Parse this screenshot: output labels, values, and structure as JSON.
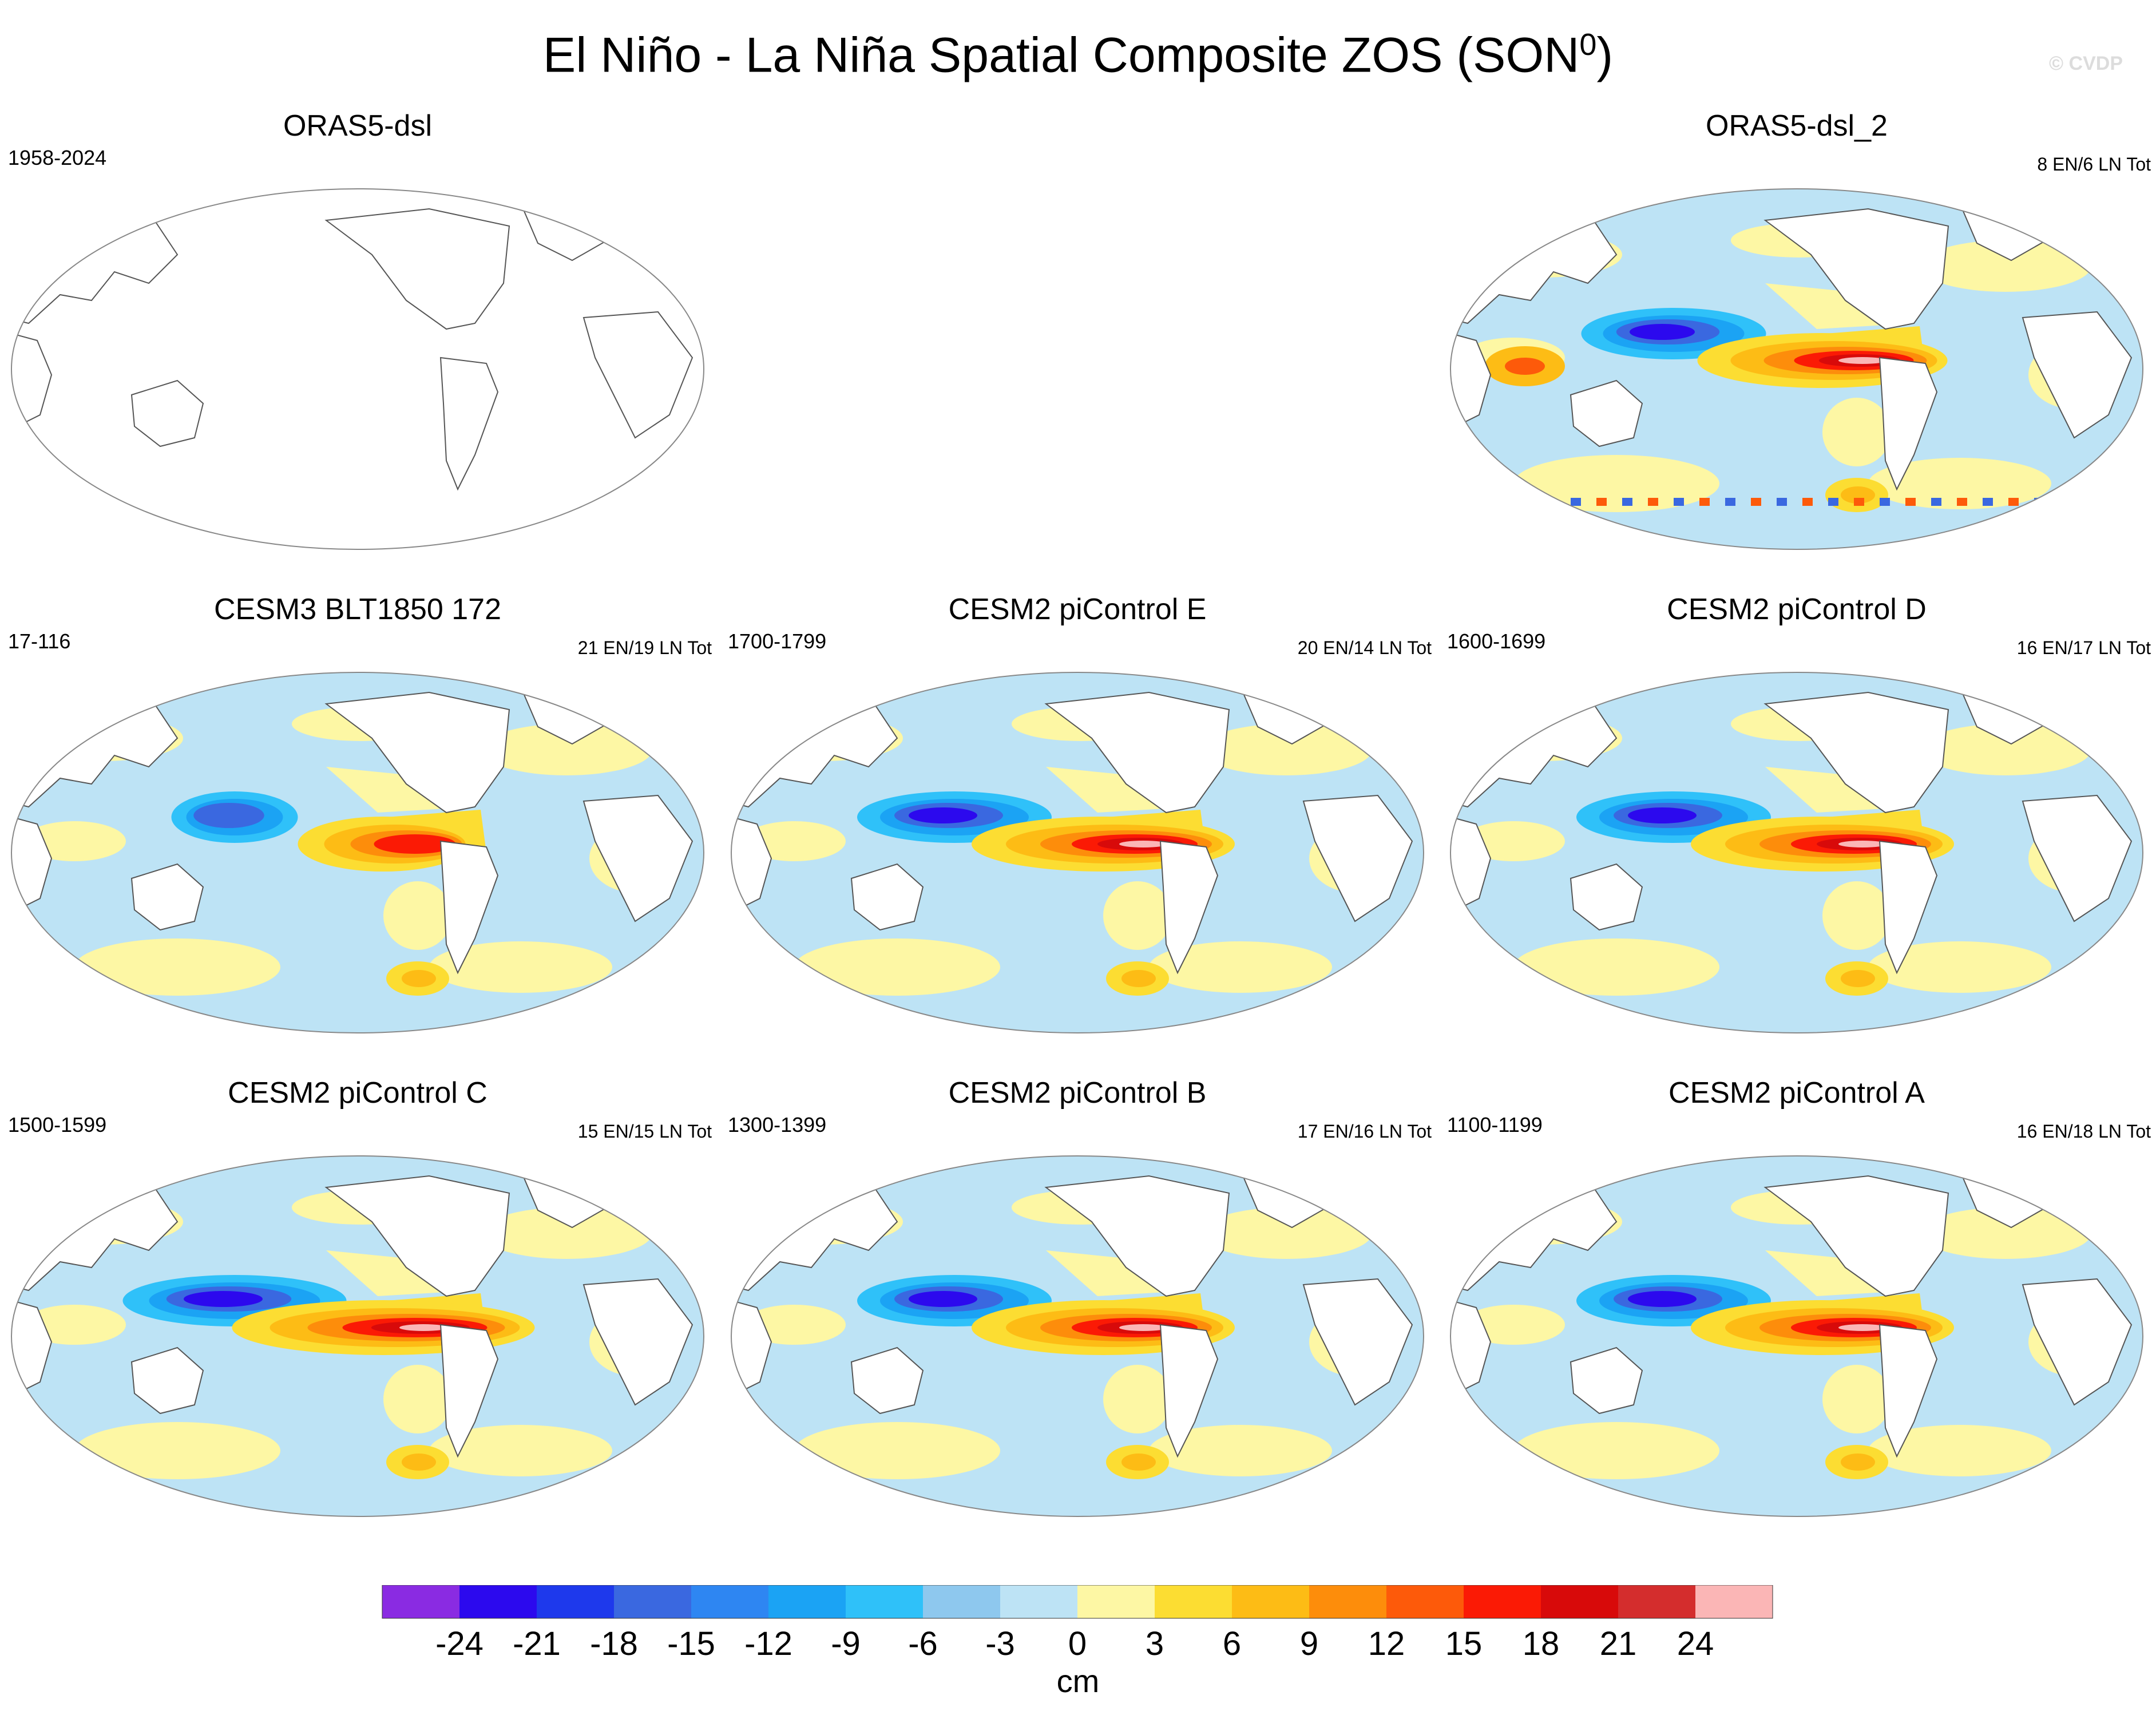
{
  "figure": {
    "title": "El Niño - La Niña Spatial Composite ZOS (SON",
    "title_sup": "0",
    "title_close": ")",
    "credit": "© CVDP"
  },
  "panels": [
    {
      "title": "ORAS5-dsl",
      "left": "1958-2024",
      "right": "",
      "style": "empty"
    },
    {
      "title": "ORAS5-dsl_2",
      "left": "",
      "right": "8 EN/6 LN Tot",
      "style": "noisy"
    },
    {
      "title": "CESM3 BLT1850 172",
      "left": "17-116",
      "right": "21 EN/19 LN Tot",
      "style": "weak"
    },
    {
      "title": "CESM2 piControl E",
      "left": "1700-1799",
      "right": "20 EN/14 LN Tot",
      "style": "strong"
    },
    {
      "title": "CESM2 piControl D",
      "left": "1600-1699",
      "right": "16 EN/17 LN Tot",
      "style": "strong"
    },
    {
      "title": "CESM2 piControl C",
      "left": "1500-1599",
      "right": "15 EN/15 LN Tot",
      "style": "strongest"
    },
    {
      "title": "CESM2 piControl B",
      "left": "1300-1399",
      "right": "17 EN/16 LN Tot",
      "style": "strong"
    },
    {
      "title": "CESM2 piControl A",
      "left": "1100-1199",
      "right": "16 EN/18 LN Tot",
      "style": "strong"
    }
  ],
  "colorbar": {
    "unit": "cm",
    "labels": [
      "-24",
      "-21",
      "-18",
      "-15",
      "-12",
      "-9",
      "-6",
      "-3",
      "0",
      "3",
      "6",
      "9",
      "12",
      "15",
      "18",
      "21",
      "24"
    ],
    "colors": [
      "#8a2be2",
      "#2c09ee",
      "#1e39ec",
      "#3a68e0",
      "#2e86f2",
      "#1ba3f4",
      "#2fc1f9",
      "#8ec8ee",
      "#bde3f5",
      "#fdf7a4",
      "#fcdd32",
      "#fdbc15",
      "#fd8d0b",
      "#fd5a0a",
      "#fb1a05",
      "#d80a0a",
      "#d42d2d",
      "#fbb6b6"
    ]
  }
}
